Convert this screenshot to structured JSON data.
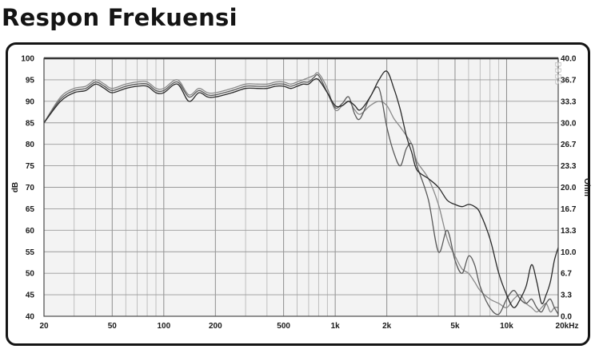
{
  "heading": "Respon Frekuensi",
  "watermark": "BBBS",
  "chart_data": {
    "type": "line",
    "title": "",
    "xlabel": "",
    "ylabel": "dB",
    "y2label": "Ohm",
    "xscale": "log",
    "xlim": [
      20,
      20000
    ],
    "ylim": [
      40,
      100
    ],
    "y2lim": [
      0,
      40
    ],
    "grid": true,
    "legend": "none",
    "x_ticks": [
      {
        "value": 20,
        "label": "20"
      },
      {
        "value": 50,
        "label": "50"
      },
      {
        "value": 100,
        "label": "100"
      },
      {
        "value": 200,
        "label": "200"
      },
      {
        "value": 500,
        "label": "500"
      },
      {
        "value": 1000,
        "label": "1k"
      },
      {
        "value": 2000,
        "label": "2k"
      },
      {
        "value": 5000,
        "label": "5k"
      },
      {
        "value": 10000,
        "label": "10k"
      },
      {
        "value": 20000,
        "label": "20kHz"
      }
    ],
    "y_ticks": [
      "40",
      "45",
      "50",
      "55",
      "60",
      "65",
      "70",
      "75",
      "80",
      "85",
      "90",
      "95",
      "100"
    ],
    "y2_ticks": [
      "0.0",
      "3.3",
      "6.7",
      "10.0",
      "13.3",
      "16.7",
      "20.0",
      "23.3",
      "26.7",
      "30.0",
      "33.3",
      "36.7",
      "40.0"
    ],
    "series": [
      {
        "color": "#2a2a2a",
        "x": [
          20,
          25,
          30,
          35,
          40,
          45,
          50,
          60,
          70,
          80,
          90,
          100,
          120,
          140,
          160,
          180,
          200,
          250,
          300,
          350,
          400,
          450,
          500,
          550,
          600,
          650,
          700,
          750,
          800,
          900,
          1000,
          1100,
          1200,
          1300,
          1400,
          1600,
          1800,
          2000,
          2200,
          2400,
          2600,
          2800,
          3000,
          3500,
          4000,
          4500,
          5000,
          5500,
          6000,
          6500,
          7000,
          8000,
          9000,
          10000,
          11000,
          12000,
          13000,
          14000,
          15000,
          16000,
          17000,
          18000,
          19000,
          20000
        ],
        "y": [
          85,
          90,
          92,
          92.5,
          94,
          93,
          92,
          93,
          93.5,
          93.5,
          92,
          92,
          94,
          90,
          92,
          91,
          91,
          92,
          93,
          93,
          93,
          93.5,
          93.5,
          93,
          93.5,
          94,
          94,
          95,
          95,
          92,
          89,
          89,
          90,
          89,
          88,
          91,
          95,
          97,
          93,
          88,
          82,
          78,
          74,
          72,
          70,
          67,
          66,
          65.5,
          66,
          65.5,
          64,
          58,
          50,
          45,
          42,
          44,
          47,
          52,
          48,
          43,
          45,
          48,
          53,
          56
        ]
      },
      {
        "color": "#5a5a5a",
        "x": [
          20,
          25,
          30,
          35,
          40,
          45,
          50,
          60,
          70,
          80,
          90,
          100,
          120,
          140,
          160,
          180,
          200,
          250,
          300,
          350,
          400,
          450,
          500,
          550,
          600,
          650,
          700,
          750,
          800,
          900,
          1000,
          1100,
          1200,
          1300,
          1400,
          1600,
          1800,
          2000,
          2200,
          2400,
          2600,
          2800,
          3000,
          3500,
          4000,
          4500,
          5000,
          5500,
          6000,
          6500,
          7000,
          8000,
          9000,
          10000,
          11000,
          12000,
          13000,
          14000,
          15000,
          16000,
          17000,
          18000,
          19000,
          20000
        ],
        "y": [
          85,
          90.5,
          92.5,
          93,
          94.5,
          93.5,
          92.5,
          93.5,
          94,
          94,
          92.5,
          92.5,
          94.5,
          91,
          92.5,
          91.5,
          91.5,
          92.5,
          93.5,
          93.5,
          93.5,
          94,
          94,
          93.5,
          94,
          94.5,
          94.5,
          95.5,
          96,
          92,
          88.5,
          89.5,
          91,
          87,
          86,
          91,
          93,
          84,
          78,
          75,
          79,
          80,
          75,
          67,
          55,
          60,
          53,
          50,
          54,
          52,
          47,
          42,
          40.5,
          44,
          46,
          44,
          43,
          44,
          42,
          41,
          43,
          44,
          42,
          40.5
        ]
      },
      {
        "color": "#8a8a8a",
        "x": [
          20,
          25,
          30,
          35,
          40,
          45,
          50,
          60,
          70,
          80,
          90,
          100,
          120,
          140,
          160,
          180,
          200,
          250,
          300,
          350,
          400,
          450,
          500,
          550,
          600,
          650,
          700,
          750,
          800,
          900,
          1000,
          1100,
          1200,
          1300,
          1400,
          1600,
          1800,
          2000,
          2200,
          2400,
          2600,
          2800,
          3000,
          3500,
          4000,
          4500,
          5000,
          5500,
          6000,
          6500,
          7000,
          8000,
          9000,
          10000,
          11000,
          12000,
          13000,
          14000,
          15000,
          16000,
          17000,
          18000,
          19000,
          20000
        ],
        "y": [
          85,
          91,
          93,
          93.5,
          95,
          94,
          93,
          94,
          94.5,
          94.5,
          93,
          93,
          95,
          91.5,
          93,
          92,
          92,
          93,
          94,
          94,
          94,
          94.5,
          94.5,
          94,
          94.5,
          95,
          95.5,
          96,
          96.5,
          93,
          88,
          89,
          90,
          88,
          87,
          89,
          90,
          89,
          86,
          84,
          82,
          80,
          76,
          72,
          66,
          58,
          54,
          51,
          50,
          48,
          46,
          44,
          43,
          42,
          44,
          45,
          43,
          42,
          41,
          42,
          43,
          41,
          42,
          42
        ]
      }
    ]
  }
}
